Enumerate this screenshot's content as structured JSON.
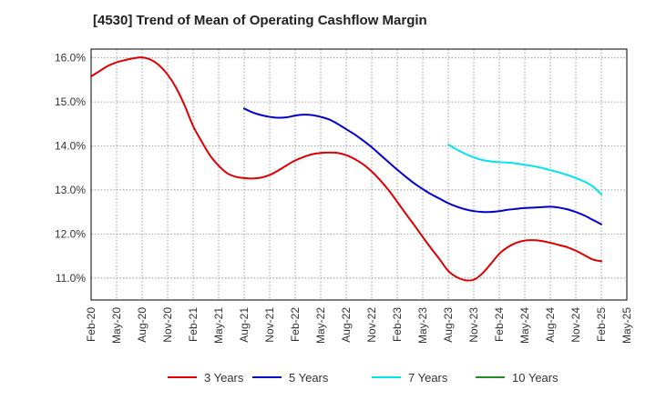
{
  "chart_data": {
    "type": "line",
    "title": "[4530]  Trend of Mean of Operating Cashflow Margin",
    "xlabel": "",
    "ylabel": "",
    "x_ticks": [
      "Feb-20",
      "May-20",
      "Aug-20",
      "Nov-20",
      "Feb-21",
      "May-21",
      "Aug-21",
      "Nov-21",
      "Feb-22",
      "May-22",
      "Aug-22",
      "Nov-22",
      "Feb-23",
      "May-23",
      "Aug-23",
      "Nov-23",
      "Feb-24",
      "May-24",
      "Aug-24",
      "Nov-24",
      "Feb-25",
      "May-25"
    ],
    "y_ticks": [
      "11.0%",
      "12.0%",
      "13.0%",
      "14.0%",
      "15.0%",
      "16.0%"
    ],
    "ylim": [
      10.5,
      16.2
    ],
    "grid": true,
    "legend_position": "bottom",
    "series": [
      {
        "name": "3 Years",
        "color": "#dd0000",
        "x": [
          "Feb-20",
          "Mar-20",
          "Apr-20",
          "May-20",
          "Jun-20",
          "Jul-20",
          "Aug-20",
          "Sep-20",
          "Oct-20",
          "Nov-20",
          "Dec-20",
          "Jan-21",
          "Feb-21",
          "Mar-21",
          "Apr-21",
          "May-21",
          "Jun-21",
          "Jul-21",
          "Aug-21",
          "Sep-21",
          "Oct-21",
          "Nov-21",
          "Dec-21",
          "Jan-22",
          "Feb-22",
          "Mar-22",
          "Apr-22",
          "May-22",
          "Jun-22",
          "Jul-22",
          "Aug-22",
          "Sep-22",
          "Oct-22",
          "Nov-22",
          "Dec-22",
          "Jan-23",
          "Feb-23",
          "Mar-23",
          "Apr-23",
          "May-23",
          "Jun-23",
          "Jul-23",
          "Aug-23",
          "Sep-23",
          "Oct-23",
          "Nov-23",
          "Dec-23",
          "Jan-24",
          "Feb-24",
          "Mar-24",
          "Apr-24",
          "May-24",
          "Jun-24",
          "Jul-24",
          "Aug-24",
          "Sep-24",
          "Oct-24",
          "Nov-24",
          "Dec-24",
          "Jan-25",
          "Feb-25"
        ],
        "values": [
          15.58,
          15.7,
          15.82,
          15.9,
          15.95,
          15.99,
          16.01,
          15.96,
          15.83,
          15.62,
          15.32,
          14.92,
          14.45,
          14.1,
          13.78,
          13.55,
          13.38,
          13.3,
          13.27,
          13.26,
          13.28,
          13.34,
          13.44,
          13.56,
          13.67,
          13.75,
          13.81,
          13.84,
          13.85,
          13.84,
          13.79,
          13.7,
          13.58,
          13.42,
          13.22,
          12.99,
          12.73,
          12.46,
          12.2,
          11.93,
          11.67,
          11.42,
          11.16,
          11.02,
          10.95,
          10.96,
          11.1,
          11.32,
          11.55,
          11.7,
          11.8,
          11.85,
          11.86,
          11.84,
          11.8,
          11.75,
          11.7,
          11.62,
          11.52,
          11.42,
          11.38
        ]
      },
      {
        "name": "5 Years",
        "color": "#0000cc",
        "x": [
          "Aug-21",
          "Sep-21",
          "Oct-21",
          "Nov-21",
          "Dec-21",
          "Jan-22",
          "Feb-22",
          "Mar-22",
          "Apr-22",
          "May-22",
          "Jun-22",
          "Jul-22",
          "Aug-22",
          "Sep-22",
          "Oct-22",
          "Nov-22",
          "Dec-22",
          "Jan-23",
          "Feb-23",
          "Mar-23",
          "Apr-23",
          "May-23",
          "Jun-23",
          "Jul-23",
          "Aug-23",
          "Sep-23",
          "Oct-23",
          "Nov-23",
          "Dec-23",
          "Jan-24",
          "Feb-24",
          "Mar-24",
          "Apr-24",
          "May-24",
          "Jun-24",
          "Jul-24",
          "Aug-24",
          "Sep-24",
          "Oct-24",
          "Nov-24",
          "Dec-24",
          "Jan-25",
          "Feb-25"
        ],
        "values": [
          14.85,
          14.76,
          14.7,
          14.66,
          14.64,
          14.65,
          14.69,
          14.71,
          14.7,
          14.66,
          14.6,
          14.5,
          14.38,
          14.26,
          14.12,
          13.97,
          13.8,
          13.63,
          13.46,
          13.3,
          13.15,
          13.02,
          12.9,
          12.8,
          12.7,
          12.62,
          12.56,
          12.52,
          12.5,
          12.5,
          12.52,
          12.55,
          12.57,
          12.59,
          12.6,
          12.61,
          12.62,
          12.6,
          12.56,
          12.5,
          12.42,
          12.32,
          12.22
        ]
      },
      {
        "name": "7 Years",
        "color": "#00e5ee",
        "x": [
          "Aug-23",
          "Sep-23",
          "Oct-23",
          "Nov-23",
          "Dec-23",
          "Jan-24",
          "Feb-24",
          "Mar-24",
          "Apr-24",
          "May-24",
          "Jun-24",
          "Jul-24",
          "Aug-24",
          "Sep-24",
          "Oct-24",
          "Nov-24",
          "Dec-24",
          "Jan-25",
          "Feb-25"
        ],
        "values": [
          14.03,
          13.92,
          13.82,
          13.74,
          13.68,
          13.65,
          13.63,
          13.62,
          13.6,
          13.57,
          13.54,
          13.5,
          13.45,
          13.4,
          13.34,
          13.27,
          13.19,
          13.08,
          12.9
        ]
      },
      {
        "name": "10 Years",
        "color": "#228b22",
        "x": [],
        "values": []
      }
    ]
  }
}
